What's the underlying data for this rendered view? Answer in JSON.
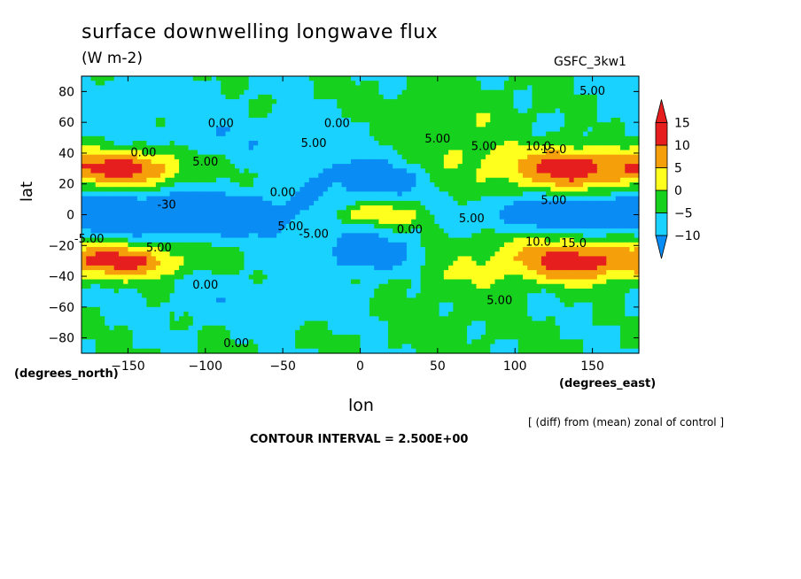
{
  "chart_data": {
    "type": "heatmap",
    "title": "surface downwelling longwave flux",
    "units": "(W m-2)",
    "dataset": "GSFC_3kw1",
    "xlabel": "lon",
    "xunits": "(degrees_east)",
    "ylabel": "lat",
    "yunits": "(degrees_north)",
    "xlim": [
      -180,
      180
    ],
    "ylim": [
      -90,
      90
    ],
    "x_ticks": [
      -150,
      -100,
      -50,
      0,
      50,
      100,
      150
    ],
    "y_ticks": [
      80,
      60,
      40,
      20,
      0,
      -20,
      -40,
      -60,
      -80
    ],
    "note": "[ (diff) from (mean) zonal of control ]",
    "contour_interval": "CONTOUR INTERVAL = 2.500E+00",
    "colorbar": {
      "ticks": [
        15,
        10,
        5,
        0,
        -5,
        -10
      ],
      "levels": [
        -10,
        -5,
        0,
        5,
        10,
        15
      ],
      "colors": [
        "#0a8cf5",
        "#19d2ff",
        "#16d21e",
        "#ffff1e",
        "#f5a00a",
        "#e61e1e"
      ],
      "bin_colors": [
        {
          "range": [
            -999,
            -10
          ],
          "color": "#0a8cf5"
        },
        {
          "range": [
            -10,
            -5
          ],
          "color": "#0a8cf5"
        },
        {
          "range": [
            -5,
            0
          ],
          "color": "#19d2ff"
        },
        {
          "range": [
            0,
            5
          ],
          "color": "#16d21e"
        },
        {
          "range": [
            5,
            10
          ],
          "color": "#ffff1e"
        },
        {
          "range": [
            10,
            15
          ],
          "color": "#f5a00a"
        },
        {
          "range": [
            15,
            999
          ],
          "color": "#e61e1e"
        }
      ]
    },
    "anomalies": [
      {
        "lon": -150,
        "lat": 30,
        "value": 17,
        "dlon": 25,
        "dlat": 8
      },
      {
        "lon": -150,
        "lat": -30,
        "value": 16,
        "dlon": 25,
        "dlat": 8
      },
      {
        "lon": 140,
        "lat": 30,
        "value": 17,
        "dlon": 30,
        "dlat": 10
      },
      {
        "lon": 140,
        "lat": -30,
        "value": 17,
        "dlon": 30,
        "dlat": 10
      },
      {
        "lon": 10,
        "lat": 25,
        "value": -11,
        "dlon": 30,
        "dlat": 10
      },
      {
        "lon": 10,
        "lat": -25,
        "value": -11,
        "dlon": 30,
        "dlat": 10
      },
      {
        "lon": -110,
        "lat": 0,
        "value": -13,
        "dlon": 60,
        "dlat": 10
      },
      {
        "lon": 130,
        "lat": 0,
        "value": -12,
        "dlon": 50,
        "dlat": 8
      },
      {
        "lon": 10,
        "lat": 0,
        "value": 11,
        "dlon": 25,
        "dlat": 5
      },
      {
        "lon": 60,
        "lat": 45,
        "value": 8,
        "dlon": 40,
        "dlat": 20
      },
      {
        "lon": 60,
        "lat": -40,
        "value": 6,
        "dlon": 40,
        "dlat": 25
      },
      {
        "lon": -140,
        "lat": 75,
        "value": -3,
        "dlon": 40,
        "dlat": 10
      }
    ],
    "contour_labels": [
      {
        "text": "0.00",
        "lon": -90,
        "lat": 57
      },
      {
        "text": "0.00",
        "lon": -15,
        "lat": 57
      },
      {
        "text": "5.00",
        "lon": -30,
        "lat": 44
      },
      {
        "text": "0.00",
        "lon": -140,
        "lat": 38
      },
      {
        "text": "5.00",
        "lon": -100,
        "lat": 32
      },
      {
        "text": "5.00",
        "lon": 50,
        "lat": 47
      },
      {
        "text": "5.00",
        "lon": 80,
        "lat": 42
      },
      {
        "text": "10.0",
        "lon": 115,
        "lat": 42
      },
      {
        "text": "15.0",
        "lon": 125,
        "lat": 40
      },
      {
        "text": "5.00",
        "lon": 150,
        "lat": 78
      },
      {
        "text": "0.00",
        "lon": -50,
        "lat": 12
      },
      {
        "text": "5.00",
        "lon": -45,
        "lat": -10
      },
      {
        "text": "-5.00",
        "lon": -30,
        "lat": -15
      },
      {
        "text": "0.00",
        "lon": 32,
        "lat": -12
      },
      {
        "text": "5.00",
        "lon": 72,
        "lat": -5
      },
      {
        "text": "5.00",
        "lon": 125,
        "lat": 7
      },
      {
        "text": "-30",
        "lon": -125,
        "lat": 4
      },
      {
        "text": "-5.00",
        "lon": -175,
        "lat": -18
      },
      {
        "text": "5.00",
        "lon": -130,
        "lat": -24
      },
      {
        "text": "10.0",
        "lon": 115,
        "lat": -20
      },
      {
        "text": "15.0",
        "lon": 138,
        "lat": -21
      },
      {
        "text": "0.00",
        "lon": -100,
        "lat": -48
      },
      {
        "text": "5.00",
        "lon": 90,
        "lat": -58
      },
      {
        "text": "0.00",
        "lon": -80,
        "lat": -86
      }
    ]
  }
}
